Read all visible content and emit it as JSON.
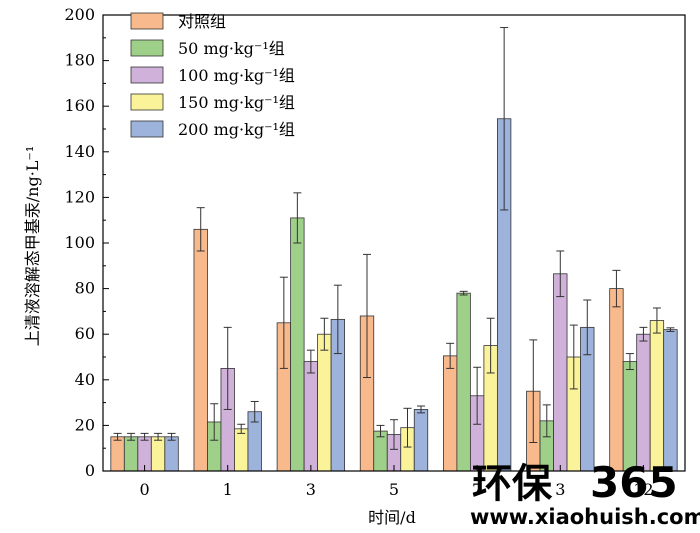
{
  "chart_data": {
    "type": "bar",
    "categories": [
      "0",
      "1",
      "3",
      "5",
      "7",
      "3",
      "12"
    ],
    "xlabel": "时间/d",
    "ylabel": "上清液溶解态甲基汞/ng·L⁻¹",
    "ylim": [
      0,
      200
    ],
    "yticks": [
      0,
      20,
      40,
      60,
      80,
      100,
      120,
      140,
      160,
      180,
      200
    ],
    "legend_position": "top-left",
    "series": [
      {
        "name": "对照组",
        "color": "#f8b98c",
        "values": [
          15,
          106,
          65,
          68,
          50.5,
          35,
          80
        ],
        "errors": [
          1.5,
          9.5,
          20,
          27,
          5.5,
          22.5,
          8
        ]
      },
      {
        "name": "50 mg·kg⁻¹组",
        "color": "#9fd08a",
        "values": [
          15,
          21.5,
          111,
          17.5,
          78,
          22,
          48
        ],
        "errors": [
          1.5,
          8,
          11,
          2.5,
          0.8,
          7,
          3.5
        ]
      },
      {
        "name": "100 mg·kg⁻¹组",
        "color": "#cfb1d9",
        "values": [
          15,
          45,
          48,
          16,
          33,
          86.5,
          60
        ],
        "errors": [
          1.5,
          18,
          5,
          6.5,
          12.5,
          10,
          3
        ]
      },
      {
        "name": "150 mg·kg⁻¹组",
        "color": "#fbf39a",
        "values": [
          15,
          18.5,
          60,
          19,
          55,
          50,
          66
        ],
        "errors": [
          1.5,
          2,
          7,
          8.5,
          12,
          14,
          5.5
        ]
      },
      {
        "name": "200 mg·kg⁻¹组",
        "color": "#9db3dc",
        "values": [
          15,
          26,
          66.5,
          27,
          154.5,
          63,
          62
        ],
        "errors": [
          1.5,
          4.5,
          15,
          1.5,
          40,
          12,
          0.8
        ]
      }
    ]
  },
  "watermark": {
    "brand_cn": "环保",
    "brand_num": "365",
    "url": "www.xiaohuish.com",
    "colors": {
      "text": "#2bb24c",
      "url": "#222222"
    }
  }
}
